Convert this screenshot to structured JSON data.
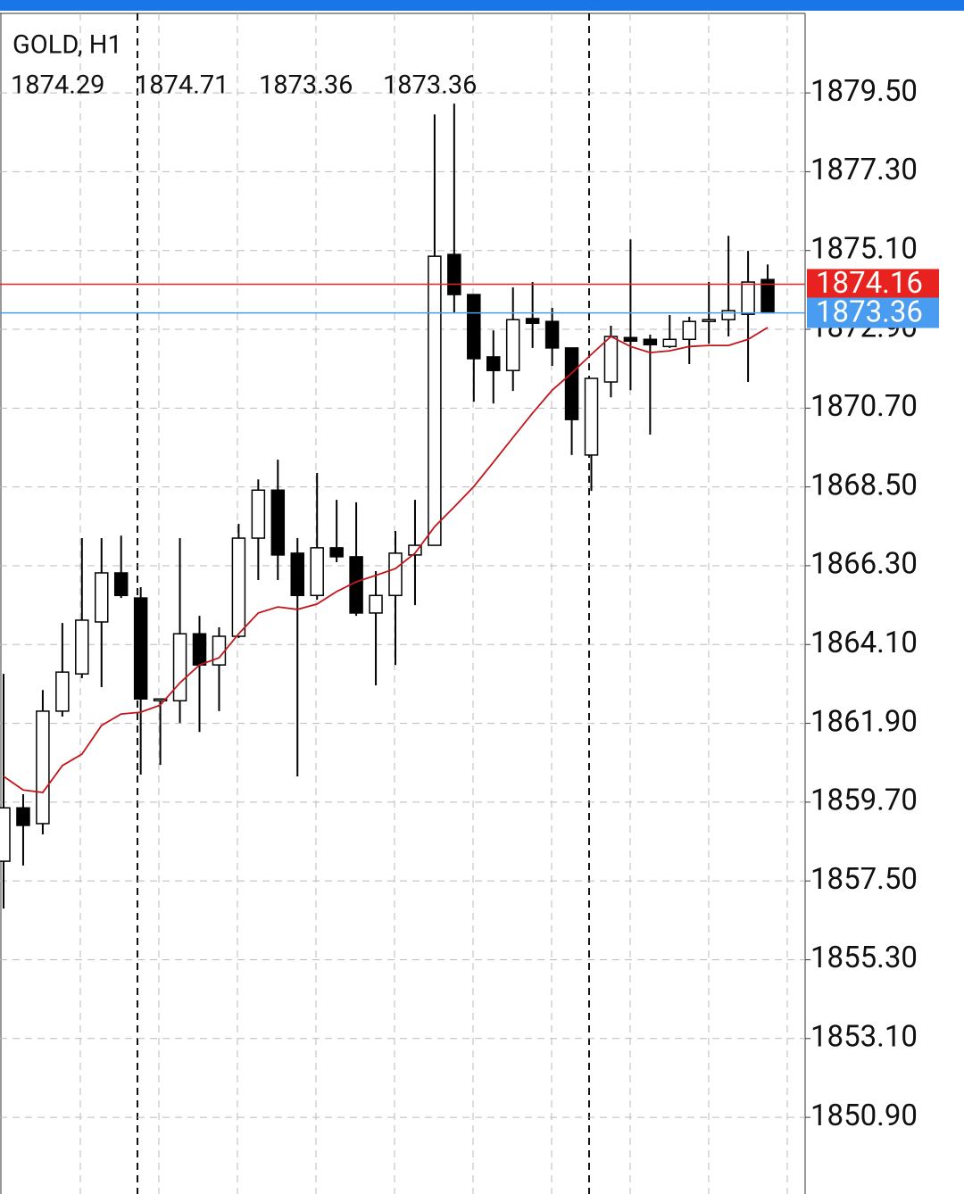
{
  "chart_data": {
    "type": "candlestick",
    "title": "GOLD, H1",
    "open": [
      1858.05,
      1859.54,
      1859.1,
      1862.24,
      1863.28,
      1864.73,
      1866.1,
      1865.4,
      1862.53,
      1862.53,
      1864.4,
      1863.53,
      1864.33,
      1867.07,
      1868.41,
      1866.65,
      1865.47,
      1866.8,
      1866.55,
      1864.98,
      1865.47,
      1866.6,
      1866.87,
      1874.99,
      1873.87,
      1872.13,
      1871.75,
      1873.2,
      1873.12,
      1872.38,
      1869.39,
      1871.43,
      1872.67,
      1872.62,
      1872.42,
      1872.62,
      1873.12,
      1873.17,
      1873.32,
      1874.29
    ],
    "high": [
      1863.28,
      1859.92,
      1862.83,
      1864.7,
      1867.07,
      1867.07,
      1867.14,
      1865.7,
      1862.6,
      1867.07,
      1864.9,
      1864.58,
      1867.47,
      1868.71,
      1869.26,
      1867.07,
      1868.89,
      1868.14,
      1868.07,
      1866.15,
      1867.27,
      1868.14,
      1878.9,
      1879.2,
      1873.87,
      1872.87,
      1874.07,
      1874.22,
      1873.5,
      1872.38,
      1871.53,
      1873.0,
      1875.41,
      1872.75,
      1873.3,
      1873.25,
      1874.22,
      1875.51,
      1875.09,
      1874.71
    ],
    "low": [
      1856.73,
      1857.93,
      1858.8,
      1862.09,
      1863.16,
      1862.91,
      1865.4,
      1860.47,
      1860.74,
      1861.91,
      1861.66,
      1862.24,
      1864.28,
      1865.9,
      1865.9,
      1860.42,
      1865.35,
      1866.4,
      1864.9,
      1862.96,
      1863.53,
      1865.2,
      1866.87,
      1873.37,
      1870.88,
      1870.83,
      1871.18,
      1872.38,
      1871.88,
      1869.39,
      1868.39,
      1871.0,
      1871.2,
      1869.96,
      1872.38,
      1871.93,
      1872.5,
      1872.7,
      1871.43,
      1873.36
    ],
    "close": [
      1859.54,
      1859.05,
      1862.24,
      1863.33,
      1864.78,
      1866.1,
      1865.47,
      1862.58,
      1862.58,
      1864.4,
      1863.53,
      1864.33,
      1867.07,
      1868.41,
      1866.6,
      1865.47,
      1866.8,
      1866.55,
      1864.98,
      1865.47,
      1866.65,
      1866.87,
      1874.94,
      1873.87,
      1872.08,
      1871.75,
      1873.17,
      1873.07,
      1872.38,
      1870.38,
      1871.53,
      1872.7,
      1872.57,
      1872.47,
      1872.62,
      1873.12,
      1873.17,
      1873.42,
      1874.22,
      1873.36
    ],
    "ma": {
      "color": "#c0161b",
      "values": [
        1860.42,
        1860.04,
        1859.97,
        1860.72,
        1861.04,
        1861.84,
        1862.16,
        1862.21,
        1862.41,
        1863.03,
        1863.53,
        1863.73,
        1864.4,
        1864.98,
        1865.15,
        1865.08,
        1865.23,
        1865.58,
        1865.85,
        1866.03,
        1866.22,
        1866.65,
        1867.39,
        1867.94,
        1868.51,
        1869.19,
        1869.88,
        1870.56,
        1871.2,
        1871.68,
        1872.2,
        1872.7,
        1872.42,
        1872.25,
        1872.3,
        1872.42,
        1872.45,
        1872.45,
        1872.62,
        1872.95
      ]
    },
    "ask": {
      "value": 1874.16,
      "color": "#e8231f"
    },
    "bid": {
      "value": 1873.36,
      "color": "#4a9cf0"
    },
    "ylim": [
      1848.76,
      1881.72
    ],
    "yticks": [
      {
        "value": 1879.5,
        "label": "1879.50"
      },
      {
        "value": 1877.3,
        "label": "1877.30"
      },
      {
        "value": 1875.1,
        "label": "1875.10"
      },
      {
        "value": 1872.9,
        "label": "1872.90"
      },
      {
        "value": 1870.7,
        "label": "1870.70"
      },
      {
        "value": 1868.5,
        "label": "1868.50"
      },
      {
        "value": 1866.3,
        "label": "1866.30"
      },
      {
        "value": 1864.1,
        "label": "1864.10"
      },
      {
        "value": 1861.9,
        "label": "1861.90"
      },
      {
        "value": 1859.7,
        "label": "1859.70"
      },
      {
        "value": 1857.5,
        "label": "1857.50"
      },
      {
        "value": 1855.3,
        "label": "1855.30"
      },
      {
        "value": 1853.1,
        "label": "1853.10"
      },
      {
        "value": 1850.9,
        "label": "1850.90"
      }
    ],
    "grid": true
  }
}
